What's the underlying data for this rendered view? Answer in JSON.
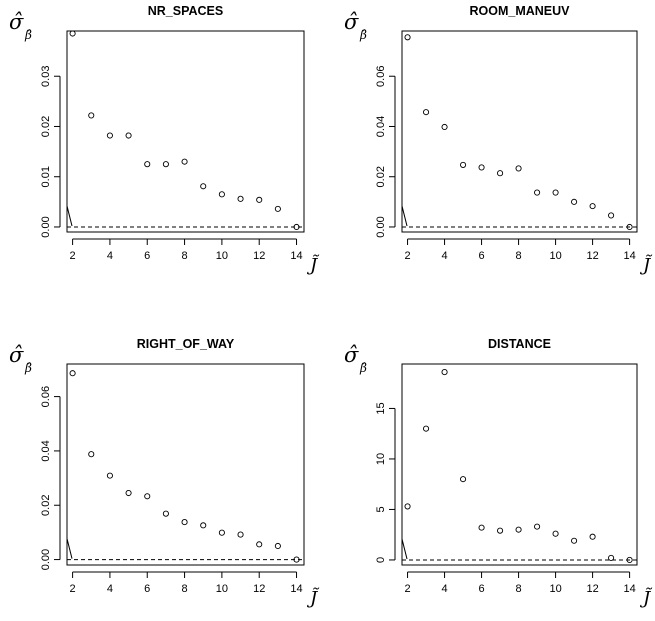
{
  "chart_data": [
    {
      "type": "scatter",
      "title": "NR_SPACES",
      "ylabel_symbol": "σ̂",
      "ylabel_subscript": "β̂",
      "xlabel": "J̃",
      "xlim": [
        1.7,
        14.4
      ],
      "ylim": [
        -0.001,
        0.039
      ],
      "xticks": [
        "2",
        "4",
        "6",
        "8",
        "10",
        "12",
        "14"
      ],
      "yticks": [
        "0.00",
        "0.01",
        "0.02",
        "0.03"
      ],
      "reference_line_y": 0,
      "x": [
        2,
        3,
        4,
        5,
        6,
        7,
        8,
        9,
        10,
        11,
        12,
        13,
        14
      ],
      "y": [
        0.0385,
        0.0222,
        0.0182,
        0.0182,
        0.0125,
        0.0125,
        0.013,
        0.0081,
        0.0065,
        0.0056,
        0.0054,
        0.0036,
        0.0
      ]
    },
    {
      "type": "scatter",
      "title": "ROOM_MANEUV",
      "ylabel_symbol": "σ̂",
      "ylabel_subscript": "β̂",
      "xlabel": "J̃",
      "xlim": [
        1.7,
        14.4
      ],
      "ylim": [
        -0.002,
        0.078
      ],
      "xticks": [
        "2",
        "4",
        "6",
        "8",
        "10",
        "12",
        "14"
      ],
      "yticks": [
        "0.00",
        "0.02",
        "0.04",
        "0.06"
      ],
      "reference_line_y": 0,
      "x": [
        2,
        3,
        4,
        5,
        6,
        7,
        8,
        9,
        10,
        11,
        12,
        13,
        14
      ],
      "y": [
        0.0755,
        0.0457,
        0.0398,
        0.0247,
        0.0237,
        0.0214,
        0.0233,
        0.0137,
        0.0137,
        0.01,
        0.0083,
        0.0046,
        0.0
      ]
    },
    {
      "type": "scatter",
      "title": "RIGHT_OF_WAY",
      "ylabel_symbol": "σ̂",
      "ylabel_subscript": "β̂",
      "xlabel": "J̃",
      "xlim": [
        1.7,
        14.4
      ],
      "ylim": [
        -0.002,
        0.072
      ],
      "xticks": [
        "2",
        "4",
        "6",
        "8",
        "10",
        "12",
        "14"
      ],
      "yticks": [
        "0.00",
        "0.02",
        "0.04",
        "0.06"
      ],
      "reference_line_y": 0,
      "x": [
        2,
        3,
        4,
        5,
        6,
        7,
        8,
        9,
        10,
        11,
        12,
        13,
        14
      ],
      "y": [
        0.0686,
        0.0388,
        0.0309,
        0.0245,
        0.0233,
        0.0169,
        0.0138,
        0.0126,
        0.0099,
        0.0092,
        0.0056,
        0.005,
        0.0
      ]
    },
    {
      "type": "scatter",
      "title": "DISTANCE",
      "ylabel_symbol": "σ̂",
      "ylabel_subscript": "β̂",
      "xlabel": "J̃",
      "xlim": [
        1.7,
        14.4
      ],
      "ylim": [
        -0.5,
        19.4
      ],
      "xticks": [
        "2",
        "4",
        "6",
        "8",
        "10",
        "12",
        "14"
      ],
      "yticks": [
        "0",
        "5",
        "10",
        "15"
      ],
      "reference_line_y": 0,
      "x": [
        2,
        3,
        4,
        5,
        6,
        7,
        8,
        9,
        10,
        11,
        12,
        13,
        14
      ],
      "y": [
        5.3,
        13.0,
        18.6,
        8.0,
        3.2,
        2.9,
        3.0,
        3.3,
        2.6,
        1.9,
        2.3,
        0.2,
        0.0
      ]
    }
  ]
}
